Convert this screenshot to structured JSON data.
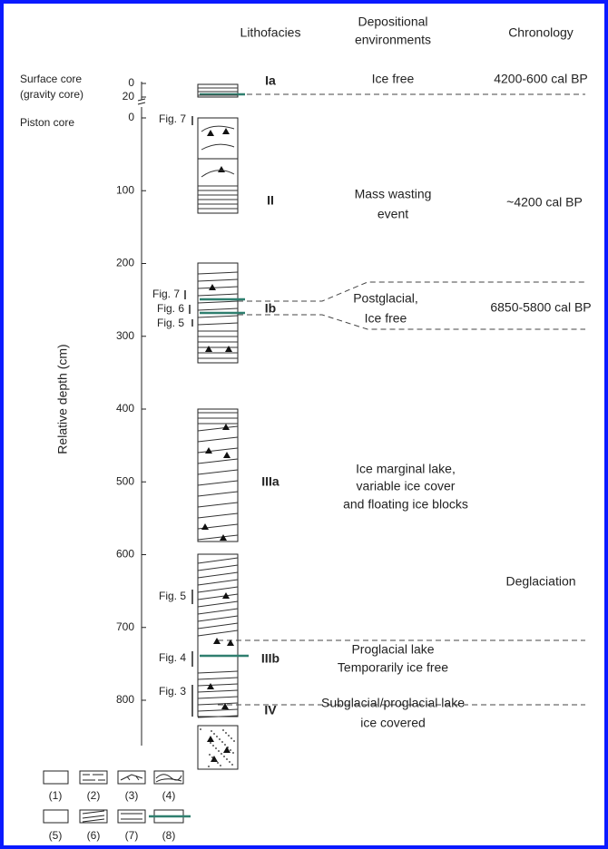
{
  "header": {
    "lithofacies": "Lithofacies",
    "depositional_environments": [
      "Depositional",
      "environments"
    ],
    "chronology": "Chronology"
  },
  "cores": {
    "surface": "Surface core",
    "surface_sub": "(gravity core)",
    "piston": "Piston core"
  },
  "axis_label": "Relative depth (cm)",
  "surface_ticks": [
    0,
    20
  ],
  "depth_ticks": [
    0,
    100,
    200,
    300,
    400,
    500,
    600,
    700,
    800
  ],
  "figures": [
    "Fig. 7",
    "Fig. 7",
    "Fig. 6",
    "Fig. 5",
    "Fig. 5",
    "Fig. 4",
    "Fig. 3"
  ],
  "units": [
    {
      "label": "Ia",
      "environment": [
        "Ice free"
      ],
      "chronology": "4200-600 cal BP"
    },
    {
      "label": "II",
      "environment": [
        "Mass wasting",
        "event"
      ],
      "chronology": "~4200 cal BP"
    },
    {
      "label": "Ib",
      "environment": [
        "Postglacial,",
        "Ice free"
      ],
      "chronology": "6850-5800 cal BP"
    },
    {
      "label": "IIIa",
      "environment": [
        "Ice marginal lake,",
        "variable ice cover",
        "and floating ice blocks"
      ]
    },
    {
      "label": "IIIb",
      "environment": [
        "Proglacial lake",
        "Temporarily ice free"
      ]
    },
    {
      "label": "IV",
      "environment": [
        "Subglacial/proglacial lake",
        "ice covered"
      ]
    }
  ],
  "deglaciation": "Deglaciation",
  "legend": [
    "(1)",
    "(2)",
    "(3)",
    "(4)",
    "(5)",
    "(6)",
    "(7)",
    "(8)"
  ]
}
